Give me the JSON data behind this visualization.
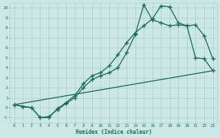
{
  "xlabel": "Humidex (Indice chaleur)",
  "bg_color": "#cce8e4",
  "grid_color": "#aacfcb",
  "line_color": "#1a6b5a",
  "xlim": [
    -0.5,
    23.5
  ],
  "ylim": [
    -1.5,
    10.5
  ],
  "xticks": [
    0,
    1,
    2,
    3,
    4,
    5,
    6,
    7,
    8,
    9,
    10,
    11,
    12,
    13,
    14,
    15,
    16,
    17,
    18,
    19,
    20,
    21,
    22,
    23
  ],
  "yticks": [
    -1,
    0,
    1,
    2,
    3,
    4,
    5,
    6,
    7,
    8,
    9,
    10
  ],
  "line1_x": [
    0,
    1,
    2,
    3,
    4,
    5,
    6,
    7,
    8,
    9,
    10,
    11,
    12,
    13,
    14,
    15,
    16,
    17,
    18,
    19,
    20,
    21,
    22,
    23
  ],
  "line1_y": [
    0.3,
    0.1,
    0.0,
    -1.0,
    -1.0,
    -0.1,
    0.5,
    1.2,
    2.4,
    3.2,
    3.5,
    4.2,
    5.3,
    6.5,
    7.5,
    8.2,
    8.9,
    10.2,
    10.1,
    8.5,
    8.2,
    8.3,
    7.2,
    4.9
  ],
  "line2_x": [
    0,
    2,
    3,
    4,
    5,
    6,
    7,
    8,
    9,
    10,
    11,
    12,
    13,
    14,
    15,
    16,
    17,
    18,
    19,
    20,
    21,
    22,
    23
  ],
  "line2_y": [
    0.3,
    0.0,
    -1.0,
    -0.9,
    -0.2,
    0.4,
    1.0,
    2.0,
    2.8,
    3.2,
    3.5,
    4.0,
    5.5,
    7.3,
    10.3,
    8.8,
    8.5,
    8.2,
    8.3,
    8.2,
    5.0,
    4.9,
    3.7
  ],
  "line3_x": [
    0,
    23
  ],
  "line3_y": [
    0.3,
    3.7
  ],
  "marker": "+",
  "markersize": 5,
  "linewidth": 1.0
}
